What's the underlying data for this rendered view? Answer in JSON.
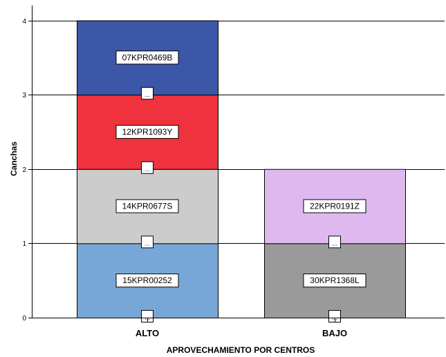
{
  "chart_data": {
    "type": "bar",
    "stacked": true,
    "xlabel": "APROVECHAMIENTO POR CENTROS",
    "ylabel": "Canchas",
    "ylim": [
      0,
      4
    ],
    "yticks": [
      0,
      1,
      2,
      3,
      4
    ],
    "categories": [
      "ALTO",
      "BAJO"
    ],
    "grid": true,
    "segments": [
      {
        "category": "ALTO",
        "label": "15KPR00252",
        "value": 1,
        "color": "#77a7d6"
      },
      {
        "category": "ALTO",
        "label": "14KPR0677S",
        "value": 1,
        "color": "#cccccc"
      },
      {
        "category": "ALTO",
        "label": "12KPR1093Y",
        "value": 1,
        "color": "#ef323d"
      },
      {
        "category": "ALTO",
        "label": "07KPR0469B",
        "value": 1,
        "color": "#3c56a8"
      },
      {
        "category": "BAJO",
        "label": "30KPR1368L",
        "value": 1,
        "color": "#9a9a9a"
      },
      {
        "category": "BAJO",
        "label": "22KPR0191Z",
        "value": 1,
        "color": "#deb8ef"
      }
    ],
    "marker_text": "..."
  }
}
